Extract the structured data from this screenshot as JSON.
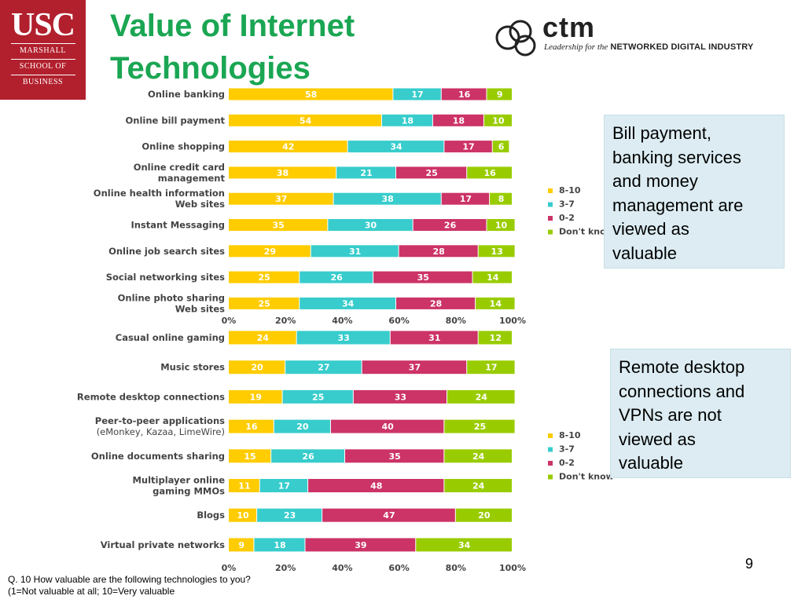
{
  "title_line1": "Value of Internet",
  "title_line2": "Technologies",
  "usc_logo": {
    "big": "USC",
    "line1": "MARSHALL",
    "line2": "SCHOOL OF",
    "line3": "BUSINESS"
  },
  "ctm_logo": {
    "word": "ctm",
    "tag_italic": "Leadership for the",
    "tag_bold": "NETWORKED DIGITAL INDUSTRY"
  },
  "callouts": {
    "top": [
      "Bill payment,",
      "banking services",
      "and money",
      "management are",
      "viewed as",
      "valuable"
    ],
    "bottom": [
      "Remote desktop",
      "connections and",
      "VPNs  are not",
      "viewed as",
      "valuable"
    ]
  },
  "page_number": "9",
  "question": {
    "line1": "Q. 10 How valuable are the following technologies to you?",
    "line2": "(1=Not valuable at all; 10=Very valuable"
  },
  "colors": {
    "s810": "#ffcc00",
    "s37": "#38cccc",
    "s02": "#cc3366",
    "dontknow": "#99cc00",
    "label": "#444444"
  },
  "chart_data": [
    {
      "type": "bar",
      "orientation": "horizontal",
      "stacked": true,
      "categories": [
        [
          "Online banking"
        ],
        [
          "Online bill payment"
        ],
        [
          "Online shopping"
        ],
        [
          "Online credit card",
          "management"
        ],
        [
          "Online health information",
          "Web sites"
        ],
        [
          "Instant Messaging"
        ],
        [
          "Online job search sites"
        ],
        [
          "Social networking sites"
        ],
        [
          "Online photo sharing",
          "Web sites"
        ]
      ],
      "series": [
        {
          "name": "8-10",
          "values": [
            58,
            54,
            42,
            38,
            37,
            35,
            29,
            25,
            25
          ]
        },
        {
          "name": "3-7",
          "values": [
            17,
            18,
            34,
            21,
            38,
            30,
            31,
            26,
            34
          ]
        },
        {
          "name": "0-2",
          "values": [
            16,
            18,
            17,
            25,
            17,
            26,
            28,
            35,
            28
          ]
        },
        {
          "name": "Don't know",
          "values": [
            9,
            10,
            6,
            16,
            8,
            10,
            13,
            14,
            14
          ]
        }
      ],
      "xlim": [
        0,
        100
      ],
      "xticks": [
        "0%",
        "20%",
        "40%",
        "60%",
        "80%",
        "100%"
      ],
      "legend": [
        "8-10",
        "3-7",
        "0-2",
        "Don't kno"
      ]
    },
    {
      "type": "bar",
      "orientation": "horizontal",
      "stacked": true,
      "categories": [
        [
          "Casual online gaming"
        ],
        [
          "Music stores"
        ],
        [
          "Remote desktop connections"
        ],
        [
          "Peer-to-peer applications",
          "(eMonkey, Kazaa, LimeWire)"
        ],
        [
          "Online documents sharing"
        ],
        [
          "Multiplayer online",
          "gaming MMOs"
        ],
        [
          "Blogs"
        ],
        [
          "Virtual private networks"
        ]
      ],
      "series": [
        {
          "name": "8-10",
          "values": [
            24,
            20,
            19,
            16,
            15,
            11,
            10,
            9
          ]
        },
        {
          "name": "3-7",
          "values": [
            33,
            27,
            25,
            20,
            26,
            17,
            23,
            18
          ]
        },
        {
          "name": "0-2",
          "values": [
            31,
            37,
            33,
            40,
            35,
            48,
            47,
            39
          ]
        },
        {
          "name": "Don't know",
          "values": [
            12,
            17,
            24,
            25,
            24,
            24,
            20,
            34
          ]
        }
      ],
      "xlim": [
        0,
        100
      ],
      "xticks": [
        "0%",
        "20%",
        "40%",
        "60%",
        "80%",
        "100%"
      ],
      "legend": [
        "8-10",
        "3-7",
        "0-2",
        "Don't know"
      ]
    }
  ]
}
